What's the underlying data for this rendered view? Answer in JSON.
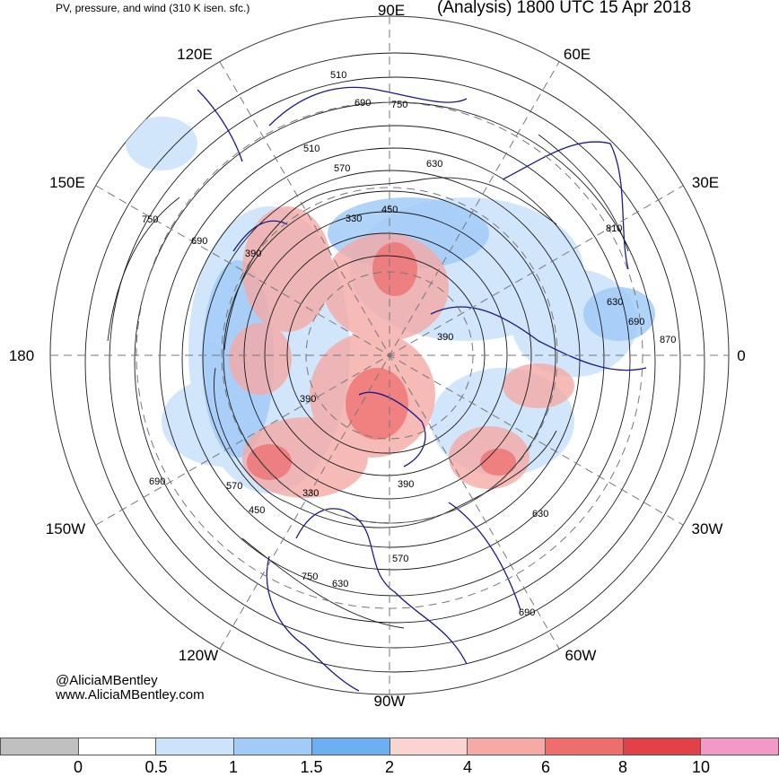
{
  "header": {
    "subtitle": "PV, pressure, and wind (310 K isen. sfc.)",
    "title": "(Analysis) 1800 UTC 15 Apr 2018"
  },
  "longitude_labels": {
    "n90e": "90E",
    "n60e": "60E",
    "n30e": "30E",
    "n0": "0",
    "n30w": "30W",
    "n60w": "60W",
    "n90w": "90W",
    "n120w": "120W",
    "n150w": "150W",
    "n180": "180",
    "n150e": "150E",
    "n120e": "120E"
  },
  "contour_labels": [
    "510",
    "690",
    "750",
    "630",
    "570",
    "330",
    "450",
    "390",
    "810",
    "630",
    "690",
    "870",
    "390",
    "510",
    "690",
    "750",
    "570",
    "450",
    "330",
    "390",
    "570",
    "630",
    "690",
    "750",
    "630",
    "690",
    "390"
  ],
  "credits": {
    "handle": "@AliciaMBentley",
    "url": "www.AliciaMBentley.com"
  },
  "colorbar": {
    "colors": [
      "#c0c0c0",
      "#ffffff",
      "#cde3fb",
      "#a2cbf7",
      "#6cb0f3",
      "#f9d4d0",
      "#f5aaa6",
      "#ee6d6d",
      "#e14147",
      "#f399c6"
    ],
    "tick_labels": [
      "0",
      "0.5",
      "1",
      "1.5",
      "2",
      "4",
      "6",
      "8",
      "10"
    ]
  },
  "colors": {
    "coastline": "#1a1a8c",
    "contour": "#1a1a1a",
    "grid": "#777777"
  }
}
